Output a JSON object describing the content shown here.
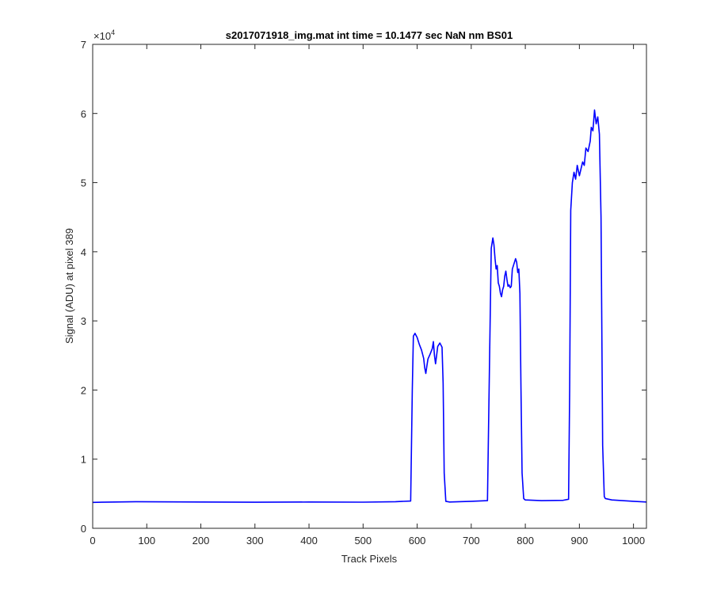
{
  "chart_data": {
    "type": "line",
    "title": "s2017071918_img.mat int time = 10.1477 sec  NaN nm BS01",
    "xlabel": "Track Pixels",
    "ylabel": "Signal (ADU) at pixel 389",
    "xlim": [
      0,
      1024
    ],
    "ylim": [
      0,
      70000
    ],
    "x_ticks": [
      0,
      100,
      200,
      300,
      400,
      500,
      600,
      700,
      800,
      900,
      1000
    ],
    "y_ticks": [
      0,
      1,
      2,
      3,
      4,
      5,
      6,
      7
    ],
    "y_exponent": "×10",
    "y_exponent_power": "4",
    "grid": false,
    "box": true,
    "series": [
      {
        "color": "#0000ff",
        "x": [
          0,
          80,
          200,
          300,
          400,
          500,
          560,
          588,
          591,
          593,
          596,
          600,
          604,
          608,
          612,
          614,
          616,
          618,
          620,
          624,
          628,
          630,
          632,
          634,
          636,
          638,
          642,
          646,
          648,
          650,
          653,
          660,
          700,
          730,
          734,
          737,
          740,
          742,
          744,
          746,
          748,
          750,
          752,
          754,
          756,
          758,
          760,
          762,
          764,
          766,
          768,
          770,
          772,
          774,
          776,
          778,
          780,
          782,
          784,
          786,
          788,
          790,
          792,
          794,
          797,
          800,
          830,
          870,
          880,
          882,
          884,
          887,
          890,
          893,
          896,
          900,
          903,
          906,
          909,
          912,
          916,
          920,
          922,
          925,
          928,
          931,
          934,
          937,
          940,
          943,
          946,
          948,
          960,
          1000,
          1024
        ],
        "y": [
          3750,
          3850,
          3800,
          3770,
          3800,
          3780,
          3850,
          3950,
          20000,
          27800,
          28200,
          27600,
          26600,
          25800,
          24600,
          23200,
          22400,
          23500,
          24500,
          25200,
          26000,
          27000,
          25000,
          23800,
          25000,
          26300,
          26800,
          26200,
          21000,
          8000,
          3900,
          3800,
          3900,
          4000,
          25000,
          40500,
          42000,
          41000,
          39000,
          37500,
          38000,
          35500,
          35000,
          34000,
          33500,
          34500,
          35000,
          36500,
          37200,
          36000,
          35000,
          35200,
          34800,
          35000,
          37500,
          38000,
          38500,
          39000,
          38500,
          37000,
          37500,
          34000,
          20000,
          8000,
          4300,
          4100,
          4000,
          4050,
          4200,
          20000,
          46000,
          50000,
          51500,
          50500,
          52500,
          51000,
          52000,
          53000,
          52500,
          55000,
          54500,
          56000,
          58000,
          57500,
          60500,
          58500,
          59500,
          57000,
          45000,
          12000,
          4600,
          4300,
          4100,
          3900,
          3800
        ]
      }
    ]
  }
}
